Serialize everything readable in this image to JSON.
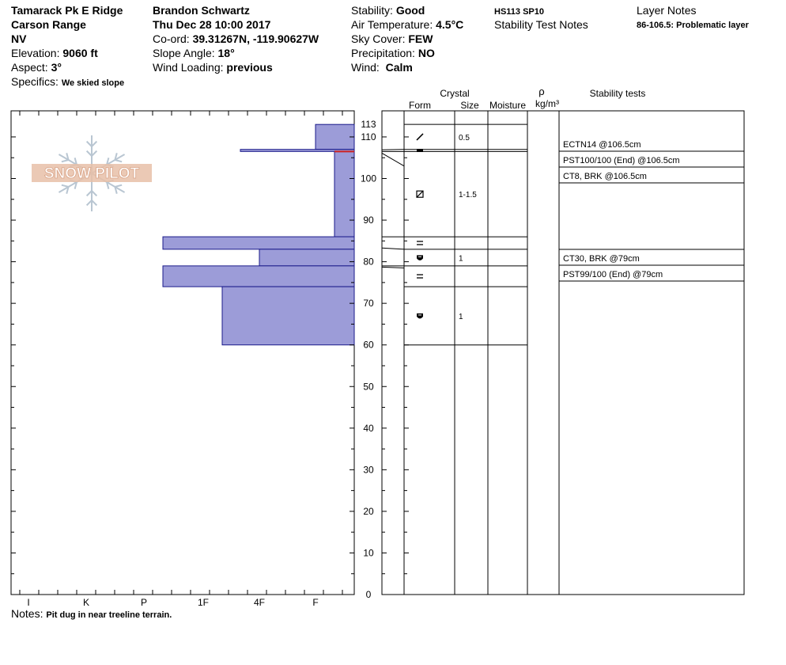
{
  "location": {
    "name": "Tamarack Pk E Ridge",
    "range": "Carson Range",
    "state": "NV",
    "elevation_label": "Elevation:",
    "elevation": "9060 ft",
    "aspect_label": "Aspect:",
    "aspect": "3°",
    "specifics_label": "Specifics:",
    "specifics": "We skied slope"
  },
  "observation": {
    "observer": "Brandon Schwartz",
    "datetime": "Thu Dec 28 10:00 2017",
    "coord_label": "Co-ord:",
    "coord": "39.31267N, -119.90627W",
    "slope_label": "Slope Angle:",
    "slope": "18°",
    "wind_loading_label": "Wind Loading:",
    "wind_loading": "previous"
  },
  "conditions": {
    "stability_label": "Stability:",
    "stability": "Good",
    "air_temp_label": "Air Temperature:",
    "air_temp": "4.5°C",
    "sky_label": "Sky Cover:",
    "sky": "FEW",
    "precip_label": "Precipitation:",
    "precip": "NO",
    "wind_label": "Wind:",
    "wind": "Calm"
  },
  "summary": {
    "hs_sp": "HS113  SP10",
    "stability_test_notes": "Stability Test Notes"
  },
  "layer_notes": {
    "title": "Layer Notes",
    "note": "86-106.5: Problematic layer"
  },
  "notes": {
    "label": "Notes:",
    "text": "Pit dug in near treeline terrain."
  },
  "logo": {
    "text": "SNOW PILOT"
  },
  "colors": {
    "layer_fill": "#9c9cd8",
    "layer_stroke": "#1a1a8a",
    "weak_layer": "#cc2222",
    "logo": "#e8c0a8"
  },
  "chart_data": {
    "type": "bar",
    "orientation": "horizontal",
    "y_axis": {
      "ticks": [
        "0",
        "10",
        "20",
        "30",
        "40",
        "50",
        "60",
        "70",
        "80",
        "90",
        "100",
        "110",
        "113"
      ],
      "ylim": [
        0,
        113
      ]
    },
    "hardness_axis": {
      "ticks": [
        "I",
        "K",
        "P",
        "1F",
        "4F",
        "F"
      ]
    },
    "layers": [
      {
        "top": 113,
        "bottom": 107,
        "hardness": "F"
      },
      {
        "top": 107,
        "bottom": 106.5,
        "hardness": "4F-"
      },
      {
        "top": 106.5,
        "bottom": 86,
        "hardness": "F+"
      },
      {
        "top": 86,
        "bottom": 83,
        "hardness": "P+"
      },
      {
        "top": 83,
        "bottom": 79,
        "hardness": "4F"
      },
      {
        "top": 79,
        "bottom": 74,
        "hardness": "P+"
      },
      {
        "top": 74,
        "bottom": 60,
        "hardness": "1F+"
      }
    ],
    "weak_layer_depth": 106.5,
    "columns": {
      "crystal": "Crystal",
      "form": "Form",
      "size": "Size",
      "moisture": "Moisture",
      "rho": "ρ",
      "density_unit": "kg/m³",
      "stability_tests": "Stability tests"
    },
    "crystal_rows": [
      {
        "top": 113,
        "bottom": 107,
        "form": "slash",
        "size": "0.5"
      },
      {
        "top": 107,
        "bottom": 106.5,
        "form": "bar",
        "size": ""
      },
      {
        "top": 106.5,
        "bottom": 86,
        "form": "square",
        "size": "1-1.5"
      },
      {
        "top": 86,
        "bottom": 83,
        "form": "equals",
        "size": ""
      },
      {
        "top": 83,
        "bottom": 79,
        "form": "cup",
        "size": "1"
      },
      {
        "top": 79,
        "bottom": 74,
        "form": "equals",
        "size": ""
      },
      {
        "top": 74,
        "bottom": 60,
        "form": "cup",
        "size": "1"
      }
    ],
    "stability_tests": [
      "ECTN14 @106.5cm",
      "PST100/100 (End) @106.5cm",
      "CT8, BRK @106.5cm",
      "CT30, BRK @79cm",
      "PST99/100 (End) @79cm"
    ]
  }
}
